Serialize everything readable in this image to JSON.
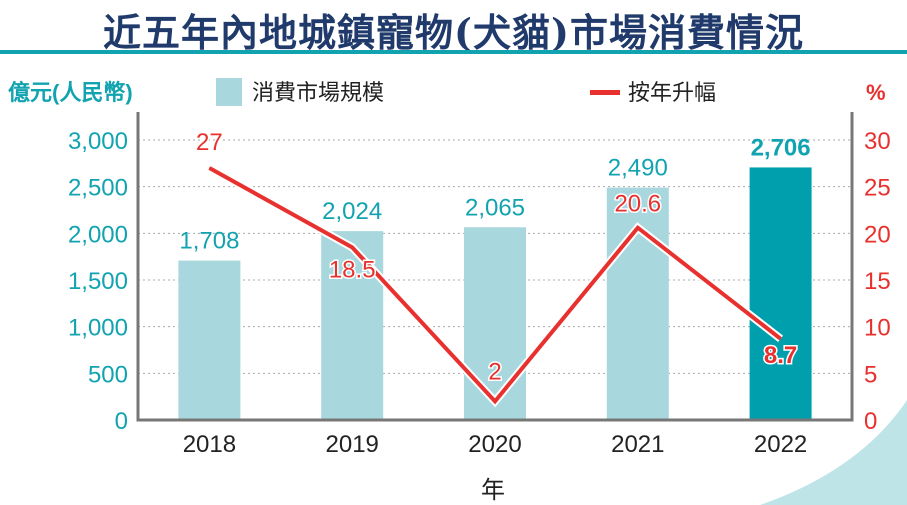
{
  "chart_data": {
    "type": "bar+line",
    "title": "近五年內地城鎮寵物(犬貓)市場消費情況",
    "xlabel": "年",
    "ylabel_left": "億元(人民幣)",
    "ylabel_right": "%",
    "categories": [
      "2018",
      "2019",
      "2020",
      "2021",
      "2022"
    ],
    "series": [
      {
        "name": "消費市場規模",
        "type": "bar",
        "axis": "left",
        "values": [
          1708,
          2024,
          2065,
          2490,
          2706
        ],
        "labels": [
          "1,708",
          "2,024",
          "2,065",
          "2,490",
          "2,706"
        ]
      },
      {
        "name": "按年升幅",
        "type": "line",
        "axis": "right",
        "values": [
          27,
          18.5,
          2,
          20.6,
          8.7
        ],
        "labels": [
          "27",
          "18.5",
          "2",
          "20.6",
          "8.7"
        ]
      }
    ],
    "ylim_left": [
      0,
      3000
    ],
    "ylim_right": [
      0,
      30
    ],
    "yticks_left": [
      "0",
      "500",
      "1,000",
      "1,500",
      "2,000",
      "2,500",
      "3,000"
    ],
    "yticks_right": [
      "0",
      "5",
      "10",
      "15",
      "20",
      "25",
      "30"
    ],
    "grid": "horizontal dotted",
    "legend_placement": "top",
    "colors": {
      "bar": "#a8d8de",
      "bar_highlight": "#009fae",
      "line": "#e8312e",
      "left_axis": "#12a3b0",
      "right_axis": "#e8312e",
      "title": "#1f3a6b"
    }
  }
}
